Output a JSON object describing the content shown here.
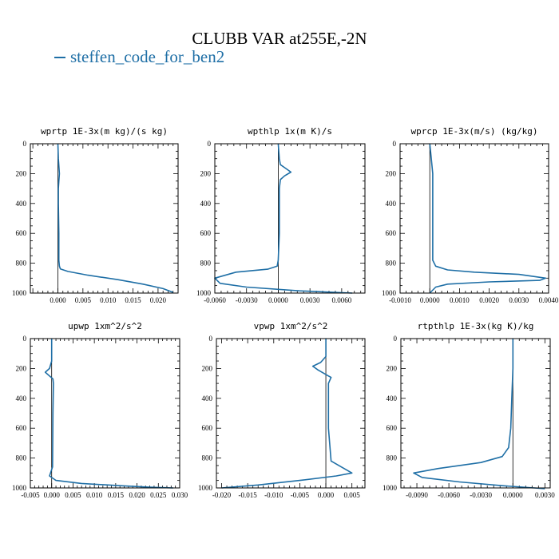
{
  "title": "CLUBB VAR at255E,-2N",
  "legend": {
    "label": "steffen_code_for_ben2",
    "color": "#1f6fa6"
  },
  "chart_data": [
    {
      "type": "line",
      "title": "wprtp  1E-3x(m kg)/(s kg)",
      "xlim": [
        -0.0055,
        0.024
      ],
      "ylim": [
        0,
        1000
      ],
      "y_inverted": true,
      "xticks": [
        0,
        0.005,
        0.01,
        0.015,
        0.02
      ],
      "xtick_labels": [
        "0.000",
        "0.005",
        "0.010",
        "0.015",
        "0.020"
      ],
      "yticks": [
        0,
        200,
        400,
        600,
        800,
        1000
      ],
      "series": [
        {
          "color": "#1f6fa6",
          "x": [
            0,
            0.0001,
            0.0003,
            0.0002,
            0.0001,
            0.0001,
            0.0002,
            0.0002,
            0.0003,
            0.0005,
            0.002,
            0.006,
            0.012,
            0.017,
            0.021,
            0.023
          ],
          "y": [
            0,
            100,
            200,
            250,
            300,
            400,
            600,
            780,
            820,
            838,
            855,
            880,
            910,
            940,
            970,
            995
          ]
        }
      ]
    },
    {
      "type": "line",
      "title": "wpthlp  1x(m K)/s",
      "xlim": [
        -0.006,
        0.0082
      ],
      "ylim": [
        0,
        1000
      ],
      "y_inverted": true,
      "xticks": [
        -0.006,
        -0.003,
        0,
        0.003,
        0.006
      ],
      "xtick_labels": [
        "-0.0060",
        "-0.0030",
        "0.0000",
        "0.0030",
        "0.0060"
      ],
      "yticks": [
        0,
        200,
        400,
        600,
        800,
        1000
      ],
      "series": [
        {
          "color": "#1f6fa6",
          "x": [
            0,
            0.0001,
            0.0002,
            0.0006,
            0.0012,
            0.0006,
            0.0002,
            0.0001,
            0.0001,
            0.0001,
            0,
            -0.0001,
            -0.001,
            -0.004,
            -0.006,
            -0.0055,
            -0.003,
            0.002,
            0.007
          ],
          "y": [
            0,
            100,
            140,
            160,
            190,
            215,
            240,
            300,
            400,
            600,
            780,
            820,
            840,
            860,
            900,
            935,
            960,
            985,
            1000
          ]
        }
      ]
    },
    {
      "type": "line",
      "title": "wprcp  1E-3x(m/s) (kg/kg)",
      "xlim": [
        -0.001,
        0.004
      ],
      "ylim": [
        0,
        1000
      ],
      "y_inverted": true,
      "xticks": [
        -0.001,
        0,
        0.001,
        0.002,
        0.003,
        0.004
      ],
      "xtick_labels": [
        "-0.0010",
        "0.0000",
        "0.0010",
        "0.0020",
        "0.0030",
        "0.0040"
      ],
      "yticks": [
        0,
        200,
        400,
        600,
        800,
        1000
      ],
      "series": [
        {
          "color": "#1f6fa6",
          "x": [
            0,
            5e-05,
            0.0001,
            0.0001,
            0.0001,
            0.0001,
            0.0002,
            0.0006,
            0.0015,
            0.003,
            0.0039,
            0.0037,
            0.002,
            0.0006,
            0.0002,
            0
          ],
          "y": [
            0,
            100,
            200,
            400,
            600,
            780,
            820,
            845,
            860,
            875,
            900,
            915,
            925,
            940,
            960,
            1000
          ]
        }
      ]
    },
    {
      "type": "line",
      "title": "upwp  1xm^2/s^2",
      "xlim": [
        -0.005,
        0.03
      ],
      "ylim": [
        0,
        1000
      ],
      "y_inverted": true,
      "xticks": [
        -0.005,
        0,
        0.005,
        0.01,
        0.015,
        0.02,
        0.025,
        0.03
      ],
      "xtick_labels": [
        "-0.005",
        "0.000",
        "0.005",
        "0.010",
        "0.015",
        "0.020",
        "0.025",
        "0.030"
      ],
      "yticks": [
        0,
        200,
        400,
        600,
        800,
        1000
      ],
      "series": [
        {
          "color": "#1f6fa6",
          "x": [
            0,
            0,
            -0.0005,
            -0.0015,
            -0.0005,
            0.0003,
            0.0004,
            0.0003,
            0.0002,
            -0.0005,
            0.001,
            0.007,
            0.016,
            0.023,
            0.0285
          ],
          "y": [
            0,
            150,
            200,
            225,
            250,
            270,
            300,
            500,
            860,
            920,
            950,
            970,
            985,
            995,
            1000
          ]
        }
      ]
    },
    {
      "type": "line",
      "title": "vpwp  1xm^2/s^2",
      "xlim": [
        -0.021,
        0.0075
      ],
      "ylim": [
        0,
        1000
      ],
      "y_inverted": true,
      "xticks": [
        -0.02,
        -0.015,
        -0.01,
        -0.005,
        0,
        0.005
      ],
      "xtick_labels": [
        "-0.020",
        "-0.015",
        "-0.010",
        "-0.005",
        "0.000",
        "0.005"
      ],
      "yticks": [
        0,
        200,
        400,
        600,
        800,
        1000
      ],
      "series": [
        {
          "color": "#1f6fa6",
          "x": [
            0,
            0,
            -0.001,
            -0.0025,
            -0.0015,
            0.0005,
            0.001,
            0.0005,
            0.0005,
            0.001,
            0.003,
            0.005,
            0.002,
            -0.005,
            -0.013,
            -0.02
          ],
          "y": [
            0,
            120,
            160,
            185,
            210,
            250,
            260,
            300,
            600,
            820,
            860,
            900,
            920,
            950,
            980,
            1000
          ]
        }
      ]
    },
    {
      "type": "line",
      "title": "rtpthlp  1E-3x(kg K)/kg",
      "xlim": [
        -0.0105,
        0.0035
      ],
      "ylim": [
        0,
        1000
      ],
      "y_inverted": true,
      "xticks": [
        -0.009,
        -0.006,
        -0.003,
        0,
        0.003
      ],
      "xtick_labels": [
        "-0.0090",
        "-0.0060",
        "-0.0030",
        "0.0000",
        "0.0030"
      ],
      "yticks": [
        0,
        200,
        400,
        600,
        800,
        1000
      ],
      "series": [
        {
          "color": "#1f6fa6",
          "x": [
            0,
            0,
            -0.0001,
            -0.0002,
            -0.0004,
            -0.001,
            -0.003,
            -0.007,
            -0.0093,
            -0.0085,
            -0.005,
            -0.001,
            0.002,
            0.003
          ],
          "y": [
            0,
            200,
            400,
            600,
            730,
            790,
            830,
            870,
            900,
            930,
            960,
            985,
            1000,
            1005
          ]
        }
      ]
    }
  ]
}
